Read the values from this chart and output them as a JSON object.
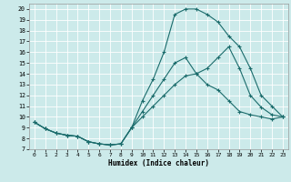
{
  "xlabel": "Humidex (Indice chaleur)",
  "bg_color": "#cceaea",
  "grid_color": "#ffffff",
  "line_color": "#1a6b6b",
  "xlim": [
    -0.5,
    23.5
  ],
  "ylim": [
    7,
    20.5
  ],
  "xticks": [
    0,
    1,
    2,
    3,
    4,
    5,
    6,
    7,
    8,
    9,
    10,
    11,
    12,
    13,
    14,
    15,
    16,
    17,
    18,
    19,
    20,
    21,
    22,
    23
  ],
  "yticks": [
    7,
    8,
    9,
    10,
    11,
    12,
    13,
    14,
    15,
    16,
    17,
    18,
    19,
    20
  ],
  "line1_x": [
    0,
    1,
    2,
    3,
    4,
    5,
    6,
    7,
    8,
    9,
    10,
    11,
    12,
    13,
    14,
    15,
    16,
    17,
    18,
    19,
    20,
    21,
    22,
    23
  ],
  "line1_y": [
    9.5,
    8.9,
    8.5,
    8.3,
    8.2,
    7.7,
    7.5,
    7.4,
    7.5,
    9.0,
    10.0,
    11.0,
    12.0,
    13.0,
    13.8,
    14.0,
    14.5,
    15.5,
    16.5,
    14.5,
    12.0,
    10.9,
    10.2,
    10.0
  ],
  "line2_x": [
    0,
    1,
    2,
    3,
    4,
    5,
    6,
    7,
    8,
    9,
    10,
    11,
    12,
    13,
    14,
    15,
    16,
    17,
    18,
    19,
    20,
    21,
    22,
    23
  ],
  "line2_y": [
    9.5,
    8.9,
    8.5,
    8.3,
    8.2,
    7.7,
    7.5,
    7.4,
    7.5,
    9.0,
    11.5,
    13.5,
    16.0,
    19.5,
    20.0,
    20.0,
    19.5,
    18.8,
    17.5,
    16.5,
    14.5,
    12.0,
    11.0,
    10.0
  ],
  "line3_x": [
    0,
    1,
    2,
    3,
    4,
    5,
    6,
    7,
    8,
    9,
    10,
    11,
    12,
    13,
    14,
    15,
    16,
    17,
    18,
    19,
    20,
    21,
    22,
    23
  ],
  "line3_y": [
    9.5,
    8.9,
    8.5,
    8.3,
    8.2,
    7.7,
    7.5,
    7.4,
    7.5,
    9.0,
    10.5,
    12.0,
    13.5,
    15.0,
    15.5,
    14.0,
    13.0,
    12.5,
    11.5,
    10.5,
    10.2,
    10.0,
    9.8,
    10.0
  ]
}
